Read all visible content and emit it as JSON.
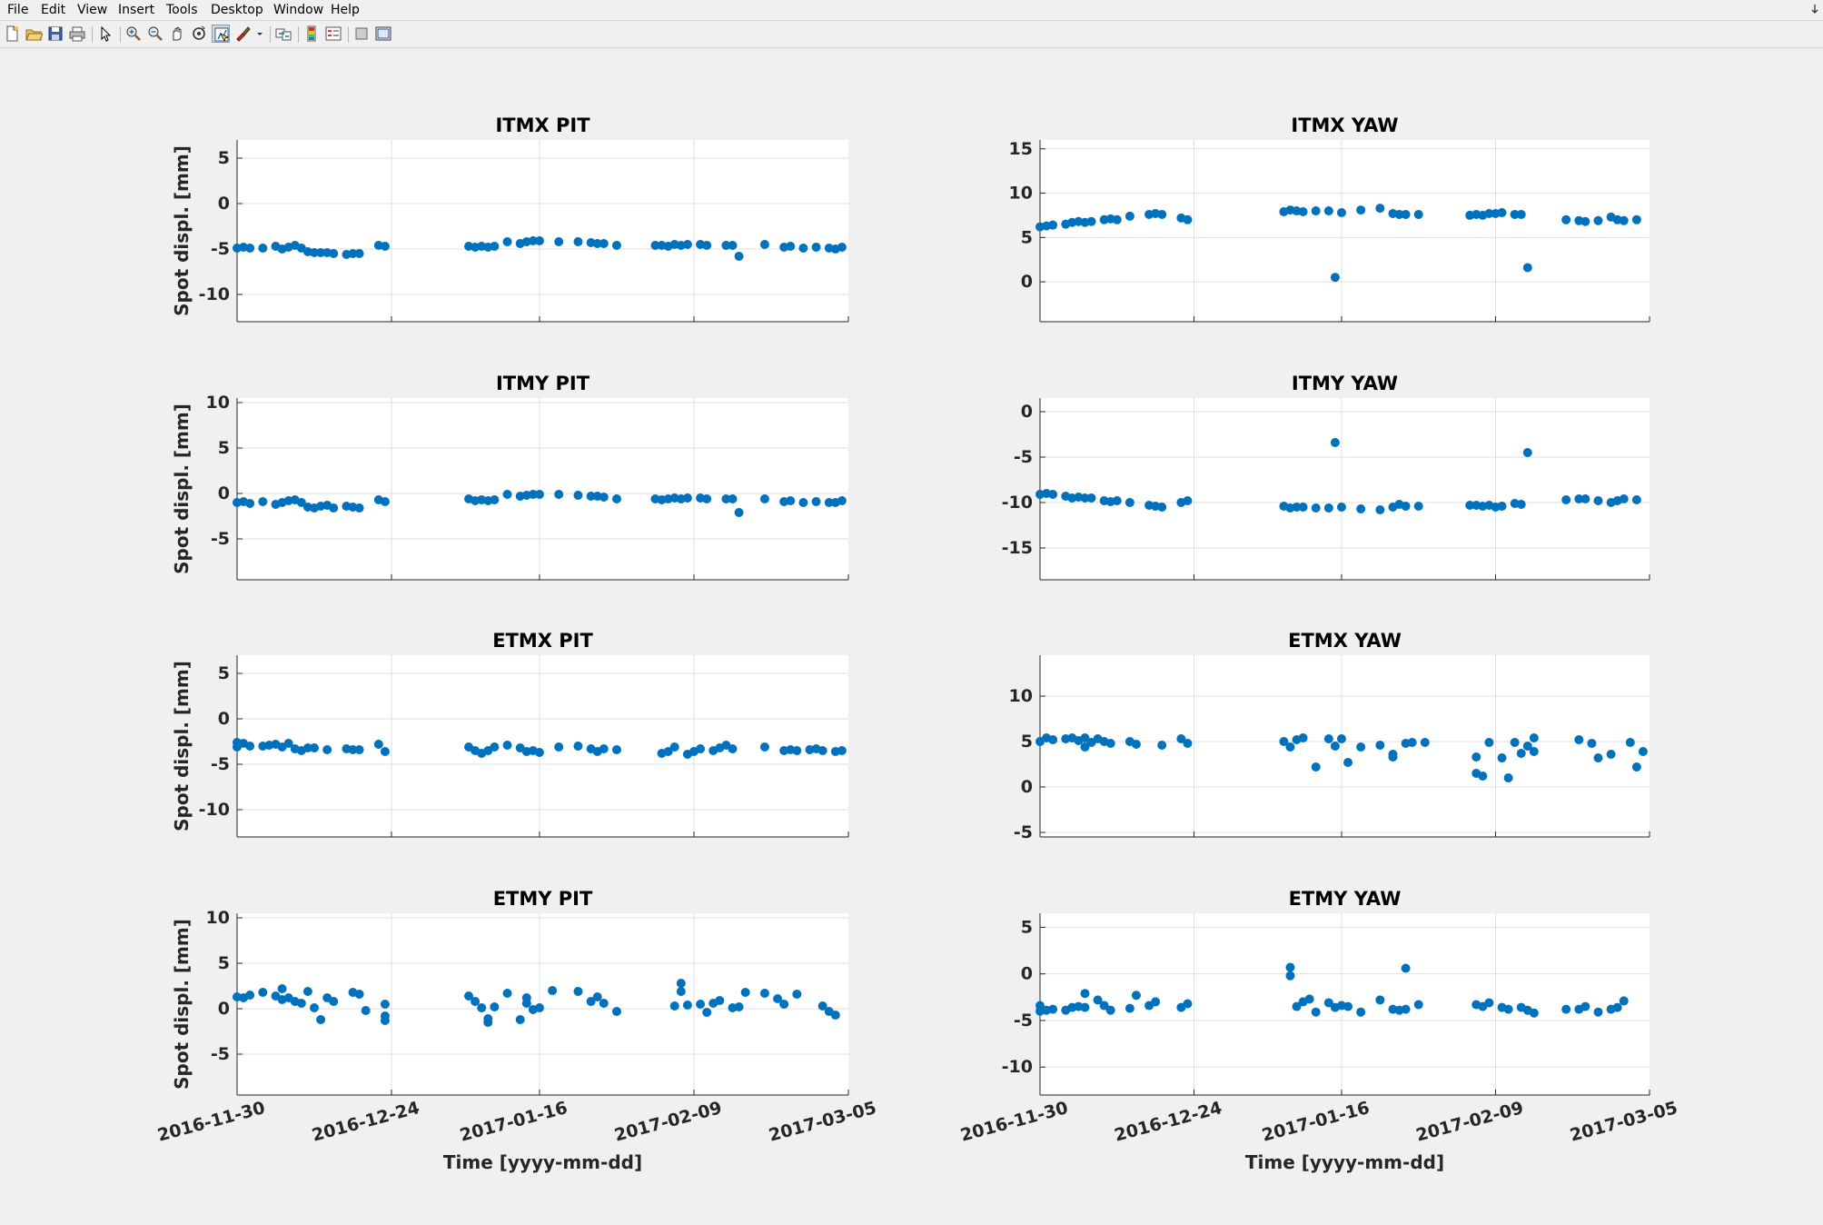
{
  "menu": [
    "File",
    "Edit",
    "View",
    "Insert",
    "Tools",
    "Desktop",
    "Window",
    "Help"
  ],
  "toolbar": {
    "buttons": [
      {
        "name": "new-figure-icon"
      },
      {
        "name": "open-file-icon"
      },
      {
        "name": "save-icon"
      },
      {
        "name": "print-icon"
      },
      {
        "sep": true
      },
      {
        "name": "edit-pointer-icon"
      },
      {
        "sep": true
      },
      {
        "name": "zoom-in-icon"
      },
      {
        "name": "zoom-out-icon"
      },
      {
        "name": "pan-hand-icon"
      },
      {
        "name": "rotate-3d-icon"
      },
      {
        "name": "data-cursor-icon",
        "pressed": true
      },
      {
        "name": "brush-icon"
      },
      {
        "name": "brush-dropdown-icon"
      },
      {
        "sep": true
      },
      {
        "name": "link-plot-icon"
      },
      {
        "sep": true
      },
      {
        "name": "colorbar-icon"
      },
      {
        "name": "legend-icon"
      },
      {
        "sep": true
      },
      {
        "name": "hide-plot-tools-icon"
      },
      {
        "name": "show-plot-tools-icon"
      }
    ]
  },
  "colors": {
    "marker": "#0072bd",
    "grid": "#dfdfdf",
    "axis": "#262626"
  },
  "x_ticks": [
    "2016-11-30",
    "2016-12-24",
    "2017-01-16",
    "2017-02-09",
    "2017-03-05"
  ],
  "xlabel": "Time [yyyy-mm-dd]",
  "chart_data": [
    {
      "type": "scatter",
      "title": "ITMX PIT",
      "ylabel": "Spot displ. [mm]",
      "xlim": [
        "2016-11-30",
        "2017-03-05"
      ],
      "ylim": [
        -13,
        7
      ],
      "yticks": [
        -10,
        -5,
        0,
        5
      ],
      "grid": true,
      "x": [
        "2016-11-30",
        "2016-12-01",
        "2016-12-02",
        "2016-12-04",
        "2016-12-06",
        "2016-12-07",
        "2016-12-08",
        "2016-12-09",
        "2016-12-10",
        "2016-12-11",
        "2016-12-12",
        "2016-12-13",
        "2016-12-14",
        "2016-12-15",
        "2016-12-17",
        "2016-12-18",
        "2016-12-19",
        "2016-12-22",
        "2016-12-23",
        "2017-01-05",
        "2017-01-06",
        "2017-01-07",
        "2017-01-08",
        "2017-01-09",
        "2017-01-11",
        "2017-01-13",
        "2017-01-14",
        "2017-01-15",
        "2017-01-16",
        "2017-01-19",
        "2017-01-22",
        "2017-01-24",
        "2017-01-25",
        "2017-01-26",
        "2017-01-28",
        "2017-02-03",
        "2017-02-04",
        "2017-02-05",
        "2017-02-06",
        "2017-02-07",
        "2017-02-08",
        "2017-02-10",
        "2017-02-11",
        "2017-02-14",
        "2017-02-15",
        "2017-02-16",
        "2017-02-20",
        "2017-02-23",
        "2017-02-24",
        "2017-02-26",
        "2017-02-28",
        "2017-03-02",
        "2017-03-03",
        "2017-03-04"
      ],
      "y": [
        -4.9,
        -4.8,
        -4.9,
        -4.9,
        -4.7,
        -5.0,
        -4.8,
        -4.6,
        -4.9,
        -5.3,
        -5.4,
        -5.4,
        -5.4,
        -5.5,
        -5.6,
        -5.5,
        -5.5,
        -4.6,
        -4.7,
        -4.7,
        -4.8,
        -4.7,
        -4.8,
        -4.7,
        -4.2,
        -4.4,
        -4.2,
        -4.1,
        -4.1,
        -4.2,
        -4.2,
        -4.3,
        -4.4,
        -4.4,
        -4.6,
        -4.6,
        -4.6,
        -4.7,
        -4.5,
        -4.6,
        -4.5,
        -4.5,
        -4.6,
        -4.6,
        -4.6,
        -5.8,
        -4.5,
        -4.8,
        -4.7,
        -4.9,
        -4.8,
        -4.9,
        -5.0,
        -4.8
      ]
    },
    {
      "type": "scatter",
      "title": "ITMX YAW",
      "ylabel": "",
      "xlim": [
        "2016-11-30",
        "2017-03-05"
      ],
      "ylim": [
        -4.5,
        16
      ],
      "yticks": [
        0,
        5,
        10,
        15
      ],
      "grid": true,
      "x": [
        "2016-11-30",
        "2016-12-01",
        "2016-12-02",
        "2016-12-04",
        "2016-12-05",
        "2016-12-06",
        "2016-12-07",
        "2016-12-08",
        "2016-12-10",
        "2016-12-11",
        "2016-12-12",
        "2016-12-14",
        "2016-12-17",
        "2016-12-18",
        "2016-12-19",
        "2016-12-22",
        "2016-12-23",
        "2017-01-07",
        "2017-01-08",
        "2017-01-09",
        "2017-01-10",
        "2017-01-12",
        "2017-01-14",
        "2017-01-15",
        "2017-01-16",
        "2017-01-19",
        "2017-01-22",
        "2017-01-24",
        "2017-01-25",
        "2017-01-26",
        "2017-01-28",
        "2017-02-05",
        "2017-02-06",
        "2017-02-07",
        "2017-02-08",
        "2017-02-09",
        "2017-02-10",
        "2017-02-12",
        "2017-02-13",
        "2017-02-14",
        "2017-02-20",
        "2017-02-22",
        "2017-02-23",
        "2017-02-25",
        "2017-02-27",
        "2017-02-28",
        "2017-03-01",
        "2017-03-03"
      ],
      "y": [
        6.2,
        6.3,
        6.4,
        6.5,
        6.7,
        6.8,
        6.7,
        6.8,
        7.0,
        7.1,
        7.0,
        7.4,
        7.6,
        7.7,
        7.6,
        7.2,
        7.0,
        7.9,
        8.1,
        8.0,
        7.9,
        8.0,
        8.0,
        0.5,
        7.8,
        8.1,
        8.3,
        7.7,
        7.6,
        7.6,
        7.6,
        7.5,
        7.6,
        7.5,
        7.7,
        7.7,
        7.8,
        7.6,
        7.6,
        1.6,
        7.0,
        6.9,
        6.8,
        6.9,
        7.3,
        7.0,
        6.9,
        7.0
      ]
    },
    {
      "type": "scatter",
      "title": "ITMY PIT",
      "ylabel": "Spot displ. [mm]",
      "xlim": [
        "2016-11-30",
        "2017-03-05"
      ],
      "ylim": [
        -9.5,
        10.5
      ],
      "yticks": [
        -5,
        0,
        5,
        10
      ],
      "grid": true,
      "x": [
        "2016-11-30",
        "2016-12-01",
        "2016-12-02",
        "2016-12-04",
        "2016-12-06",
        "2016-12-07",
        "2016-12-08",
        "2016-12-09",
        "2016-12-10",
        "2016-12-11",
        "2016-12-12",
        "2016-12-13",
        "2016-12-14",
        "2016-12-15",
        "2016-12-17",
        "2016-12-18",
        "2016-12-19",
        "2016-12-22",
        "2016-12-23",
        "2017-01-05",
        "2017-01-06",
        "2017-01-07",
        "2017-01-08",
        "2017-01-09",
        "2017-01-11",
        "2017-01-13",
        "2017-01-14",
        "2017-01-15",
        "2017-01-16",
        "2017-01-19",
        "2017-01-22",
        "2017-01-24",
        "2017-01-25",
        "2017-01-26",
        "2017-01-28",
        "2017-02-03",
        "2017-02-04",
        "2017-02-05",
        "2017-02-06",
        "2017-02-07",
        "2017-02-08",
        "2017-02-10",
        "2017-02-11",
        "2017-02-14",
        "2017-02-15",
        "2017-02-16",
        "2017-02-20",
        "2017-02-23",
        "2017-02-24",
        "2017-02-26",
        "2017-02-28",
        "2017-03-02",
        "2017-03-03",
        "2017-03-04"
      ],
      "y": [
        -1.0,
        -0.9,
        -1.1,
        -0.9,
        -1.2,
        -1.0,
        -0.8,
        -0.7,
        -1.0,
        -1.5,
        -1.6,
        -1.4,
        -1.3,
        -1.6,
        -1.4,
        -1.5,
        -1.6,
        -0.7,
        -0.9,
        -0.6,
        -0.8,
        -0.7,
        -0.8,
        -0.7,
        -0.1,
        -0.3,
        -0.2,
        -0.1,
        -0.1,
        -0.1,
        -0.2,
        -0.3,
        -0.3,
        -0.4,
        -0.6,
        -0.6,
        -0.7,
        -0.6,
        -0.5,
        -0.6,
        -0.5,
        -0.5,
        -0.6,
        -0.6,
        -0.6,
        -2.1,
        -0.6,
        -0.9,
        -0.8,
        -1.0,
        -0.9,
        -1.0,
        -1.0,
        -0.8
      ]
    },
    {
      "type": "scatter",
      "title": "ITMY YAW",
      "ylabel": "",
      "xlim": [
        "2016-11-30",
        "2017-03-05"
      ],
      "ylim": [
        -18.5,
        1.5
      ],
      "yticks": [
        -15,
        -10,
        -5,
        0
      ],
      "grid": true,
      "x": [
        "2016-11-30",
        "2016-12-01",
        "2016-12-02",
        "2016-12-04",
        "2016-12-05",
        "2016-12-06",
        "2016-12-07",
        "2016-12-08",
        "2016-12-10",
        "2016-12-11",
        "2016-12-12",
        "2016-12-14",
        "2016-12-17",
        "2016-12-18",
        "2016-12-19",
        "2016-12-22",
        "2016-12-23",
        "2017-01-07",
        "2017-01-08",
        "2017-01-09",
        "2017-01-10",
        "2017-01-12",
        "2017-01-14",
        "2017-01-15",
        "2017-01-16",
        "2017-01-19",
        "2017-01-22",
        "2017-01-24",
        "2017-01-25",
        "2017-01-26",
        "2017-01-28",
        "2017-02-05",
        "2017-02-06",
        "2017-02-07",
        "2017-02-08",
        "2017-02-09",
        "2017-02-10",
        "2017-02-12",
        "2017-02-13",
        "2017-02-14",
        "2017-02-20",
        "2017-02-22",
        "2017-02-23",
        "2017-02-25",
        "2017-02-27",
        "2017-02-28",
        "2017-03-01",
        "2017-03-03"
      ],
      "y": [
        -9.1,
        -9.0,
        -9.1,
        -9.3,
        -9.5,
        -9.4,
        -9.5,
        -9.5,
        -9.8,
        -9.9,
        -9.8,
        -10.0,
        -10.3,
        -10.4,
        -10.5,
        -10.0,
        -9.8,
        -10.4,
        -10.6,
        -10.5,
        -10.5,
        -10.6,
        -10.6,
        -3.4,
        -10.5,
        -10.7,
        -10.8,
        -10.5,
        -10.2,
        -10.4,
        -10.4,
        -10.3,
        -10.3,
        -10.4,
        -10.3,
        -10.5,
        -10.4,
        -10.1,
        -10.2,
        -4.5,
        -9.7,
        -9.6,
        -9.6,
        -9.8,
        -10.0,
        -9.8,
        -9.6,
        -9.7
      ]
    },
    {
      "type": "scatter",
      "title": "ETMX PIT",
      "ylabel": "Spot displ. [mm]",
      "xlim": [
        "2016-11-30",
        "2017-03-05"
      ],
      "ylim": [
        -13,
        7
      ],
      "yticks": [
        -10,
        -5,
        0,
        5
      ],
      "grid": true,
      "x": [
        "2016-11-30",
        "2016-11-30",
        "2016-12-01",
        "2016-12-02",
        "2016-12-04",
        "2016-12-05",
        "2016-12-06",
        "2016-12-07",
        "2016-12-08",
        "2016-12-09",
        "2016-12-10",
        "2016-12-11",
        "2016-12-12",
        "2016-12-14",
        "2016-12-17",
        "2016-12-18",
        "2016-12-19",
        "2016-12-22",
        "2016-12-23",
        "2017-01-05",
        "2017-01-06",
        "2017-01-07",
        "2017-01-08",
        "2017-01-09",
        "2017-01-11",
        "2017-01-13",
        "2017-01-14",
        "2017-01-15",
        "2017-01-16",
        "2017-01-19",
        "2017-01-22",
        "2017-01-24",
        "2017-01-25",
        "2017-01-26",
        "2017-01-28",
        "2017-02-04",
        "2017-02-05",
        "2017-02-06",
        "2017-02-08",
        "2017-02-09",
        "2017-02-10",
        "2017-02-12",
        "2017-02-13",
        "2017-02-14",
        "2017-02-15",
        "2017-02-20",
        "2017-02-23",
        "2017-02-24",
        "2017-02-25",
        "2017-02-27",
        "2017-02-28",
        "2017-03-01",
        "2017-03-03",
        "2017-03-04"
      ],
      "y": [
        -3.1,
        -2.6,
        -2.7,
        -3.0,
        -3.0,
        -2.9,
        -2.8,
        -3.1,
        -2.7,
        -3.3,
        -3.5,
        -3.2,
        -3.2,
        -3.4,
        -3.3,
        -3.4,
        -3.4,
        -2.8,
        -3.6,
        -3.1,
        -3.5,
        -3.8,
        -3.5,
        -3.1,
        -2.9,
        -3.2,
        -3.6,
        -3.5,
        -3.7,
        -3.1,
        -3.0,
        -3.3,
        -3.6,
        -3.3,
        -3.4,
        -3.8,
        -3.6,
        -3.1,
        -3.9,
        -3.6,
        -3.3,
        -3.5,
        -3.2,
        -2.9,
        -3.3,
        -3.1,
        -3.5,
        -3.4,
        -3.5,
        -3.4,
        -3.3,
        -3.5,
        -3.6,
        -3.5
      ]
    },
    {
      "type": "scatter",
      "title": "ETMX YAW",
      "ylabel": "",
      "xlim": [
        "2016-11-30",
        "2017-03-05"
      ],
      "ylim": [
        -5.5,
        14.5
      ],
      "yticks": [
        -5,
        0,
        5,
        10
      ],
      "grid": true,
      "x": [
        "2016-11-30",
        "2016-12-01",
        "2016-12-02",
        "2016-12-04",
        "2016-12-05",
        "2016-12-06",
        "2016-12-07",
        "2016-12-07",
        "2016-12-08",
        "2016-12-09",
        "2016-12-10",
        "2016-12-11",
        "2016-12-14",
        "2016-12-15",
        "2016-12-19",
        "2016-12-22",
        "2016-12-23",
        "2017-01-07",
        "2017-01-08",
        "2017-01-09",
        "2017-01-10",
        "2017-01-12",
        "2017-01-14",
        "2017-01-15",
        "2017-01-16",
        "2017-01-17",
        "2017-01-19",
        "2017-01-22",
        "2017-01-24",
        "2017-01-24",
        "2017-01-26",
        "2017-01-27",
        "2017-01-29",
        "2017-02-06",
        "2017-02-06",
        "2017-02-07",
        "2017-02-08",
        "2017-02-10",
        "2017-02-11",
        "2017-02-12",
        "2017-02-13",
        "2017-02-14",
        "2017-02-15",
        "2017-02-15",
        "2017-02-22",
        "2017-02-24",
        "2017-02-25",
        "2017-02-27",
        "2017-03-02",
        "2017-03-03",
        "2017-03-04"
      ],
      "y": [
        5.0,
        5.4,
        5.2,
        5.3,
        5.4,
        5.1,
        4.4,
        5.4,
        4.9,
        5.3,
        5.0,
        4.8,
        5.0,
        4.7,
        4.6,
        5.3,
        4.8,
        5.0,
        4.4,
        5.2,
        5.4,
        2.2,
        5.3,
        4.5,
        5.3,
        2.7,
        4.4,
        4.6,
        3.6,
        3.3,
        4.8,
        4.9,
        4.9,
        3.3,
        1.5,
        1.2,
        4.9,
        3.2,
        1.0,
        4.9,
        3.7,
        4.5,
        5.4,
        3.9,
        5.2,
        4.8,
        3.2,
        3.6,
        4.9,
        2.2,
        3.9
      ]
    },
    {
      "type": "scatter",
      "title": "ETMY PIT",
      "ylabel": "Spot displ. [mm]",
      "xlim": [
        "2016-11-30",
        "2017-03-05"
      ],
      "ylim": [
        -9.5,
        10.5
      ],
      "yticks": [
        -5,
        0,
        5,
        10
      ],
      "grid": true,
      "x": [
        "2016-11-30",
        "2016-12-01",
        "2016-12-02",
        "2016-12-04",
        "2016-12-06",
        "2016-12-07",
        "2016-12-07",
        "2016-12-08",
        "2016-12-09",
        "2016-12-10",
        "2016-12-11",
        "2016-12-12",
        "2016-12-13",
        "2016-12-14",
        "2016-12-15",
        "2016-12-18",
        "2016-12-19",
        "2016-12-20",
        "2016-12-23",
        "2016-12-23",
        "2016-12-23",
        "2017-01-05",
        "2017-01-06",
        "2017-01-07",
        "2017-01-08",
        "2017-01-08",
        "2017-01-09",
        "2017-01-11",
        "2017-01-13",
        "2017-01-14",
        "2017-01-14",
        "2017-01-15",
        "2017-01-16",
        "2017-01-18",
        "2017-01-22",
        "2017-01-24",
        "2017-01-25",
        "2017-01-26",
        "2017-01-28",
        "2017-02-06",
        "2017-02-07",
        "2017-02-07",
        "2017-02-08",
        "2017-02-10",
        "2017-02-11",
        "2017-02-12",
        "2017-02-13",
        "2017-02-15",
        "2017-02-16",
        "2017-02-17",
        "2017-02-20",
        "2017-02-22",
        "2017-02-23",
        "2017-02-25",
        "2017-03-01",
        "2017-03-02",
        "2017-03-03"
      ],
      "y": [
        1.3,
        1.2,
        1.5,
        1.8,
        1.4,
        1.0,
        2.2,
        1.2,
        0.8,
        0.6,
        1.9,
        0.1,
        -1.2,
        1.2,
        0.8,
        1.8,
        1.6,
        -0.2,
        0.5,
        -0.8,
        -1.3,
        1.4,
        0.8,
        0.1,
        -1.1,
        -1.5,
        0.2,
        1.7,
        -1.2,
        1.2,
        0.6,
        -0.1,
        0.1,
        2.0,
        1.9,
        0.8,
        1.3,
        0.6,
        -0.3,
        0.3,
        2.8,
        1.9,
        0.4,
        0.5,
        -0.4,
        0.6,
        0.9,
        0.1,
        0.2,
        1.8,
        1.7,
        1.1,
        0.5,
        1.6,
        0.3,
        -0.3,
        -0.7
      ]
    },
    {
      "type": "scatter",
      "title": "ETMY YAW",
      "ylabel": "",
      "xlim": [
        "2016-11-30",
        "2017-03-05"
      ],
      "ylim": [
        -13,
        6.5
      ],
      "yticks": [
        -10,
        -5,
        0,
        5
      ],
      "grid": true,
      "x": [
        "2016-11-30",
        "2016-11-30",
        "2016-12-01",
        "2016-12-02",
        "2016-12-04",
        "2016-12-05",
        "2016-12-06",
        "2016-12-07",
        "2016-12-07",
        "2016-12-09",
        "2016-12-10",
        "2016-12-11",
        "2016-12-14",
        "2016-12-15",
        "2016-12-17",
        "2016-12-18",
        "2016-12-22",
        "2016-12-23",
        "2017-01-08",
        "2017-01-08",
        "2017-01-09",
        "2017-01-10",
        "2017-01-11",
        "2017-01-12",
        "2017-01-14",
        "2017-01-15",
        "2017-01-16",
        "2017-01-17",
        "2017-01-19",
        "2017-01-22",
        "2017-01-24",
        "2017-01-25",
        "2017-01-26",
        "2017-01-26",
        "2017-01-28",
        "2017-02-06",
        "2017-02-07",
        "2017-02-08",
        "2017-02-10",
        "2017-02-11",
        "2017-02-13",
        "2017-02-14",
        "2017-02-15",
        "2017-02-20",
        "2017-02-22",
        "2017-02-23",
        "2017-02-25",
        "2017-02-27",
        "2017-02-28",
        "2017-03-01"
      ],
      "y": [
        -4.0,
        -3.4,
        -3.9,
        -3.8,
        -3.9,
        -3.6,
        -3.5,
        -2.1,
        -3.6,
        -2.8,
        -3.4,
        -3.9,
        -3.7,
        -2.3,
        -3.4,
        -3.0,
        -3.6,
        -3.2,
        0.7,
        -0.2,
        -3.5,
        -3.0,
        -2.7,
        -4.1,
        -3.1,
        -3.6,
        -3.4,
        -3.5,
        -4.1,
        -2.8,
        -3.8,
        -3.9,
        -3.8,
        0.6,
        -3.3,
        -3.3,
        -3.5,
        -3.1,
        -3.6,
        -3.8,
        -3.6,
        -3.9,
        -4.2,
        -3.8,
        -3.8,
        -3.5,
        -4.1,
        -3.8,
        -3.6,
        -2.9
      ]
    }
  ]
}
